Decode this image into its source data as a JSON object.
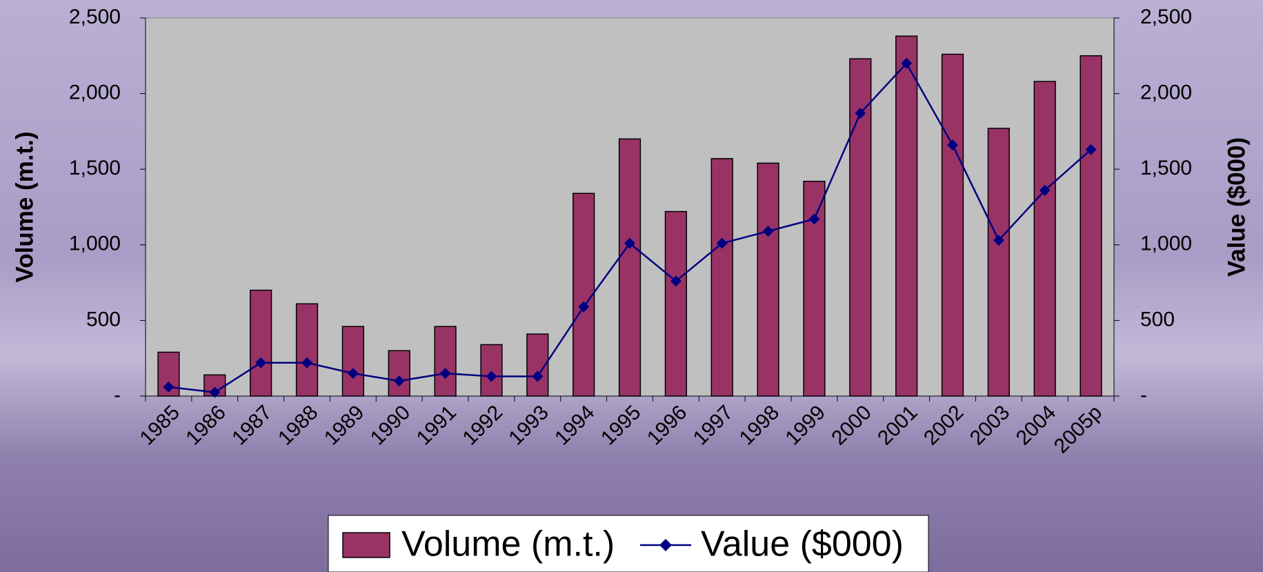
{
  "chart_data": {
    "type": "bar",
    "y_label": "Volume (m.t.)",
    "y2_label": "Value ($000)",
    "categories": [
      "1985",
      "1986",
      "1987",
      "1988",
      "1989",
      "1990",
      "1991",
      "1992",
      "1993",
      "1994",
      "1995",
      "1996",
      "1997",
      "1998",
      "1999",
      "2000",
      "2001",
      "2002",
      "2003",
      "2004",
      "2005p"
    ],
    "series": [
      {
        "name": "Volume (m.t.)",
        "type": "bar",
        "color": "#993366",
        "values": [
          290,
          140,
          700,
          610,
          460,
          300,
          460,
          340,
          410,
          1340,
          1700,
          1220,
          1570,
          1540,
          1420,
          2230,
          2380,
          2260,
          1770,
          2080,
          2250
        ]
      },
      {
        "name": "Value ($000)",
        "type": "line",
        "axis": "y2",
        "color": "#000080",
        "values": [
          60,
          25,
          220,
          220,
          150,
          100,
          150,
          130,
          130,
          590,
          1010,
          760,
          1010,
          1090,
          1170,
          1870,
          2200,
          1660,
          1030,
          1360,
          1630
        ]
      }
    ],
    "ylim": [
      0,
      2500
    ],
    "yticks": [
      {
        "value": 0,
        "label": "-"
      },
      500,
      {
        "value": 1000,
        "label": "1,000"
      },
      {
        "value": 1500,
        "label": "1,500"
      },
      {
        "value": 2000,
        "label": "2,000"
      },
      {
        "value": 2500,
        "label": "2,500"
      }
    ],
    "y2lim": [
      0,
      2500
    ],
    "y2ticks": [
      {
        "value": 0,
        "label": "-"
      },
      500,
      {
        "value": 1000,
        "label": "1,000"
      },
      {
        "value": 1500,
        "label": "1,500"
      },
      {
        "value": 2000,
        "label": "2,000"
      },
      {
        "value": 2500,
        "label": "2,500"
      }
    ],
    "legend": "bottom",
    "plot_background": "#c0c0c0"
  }
}
